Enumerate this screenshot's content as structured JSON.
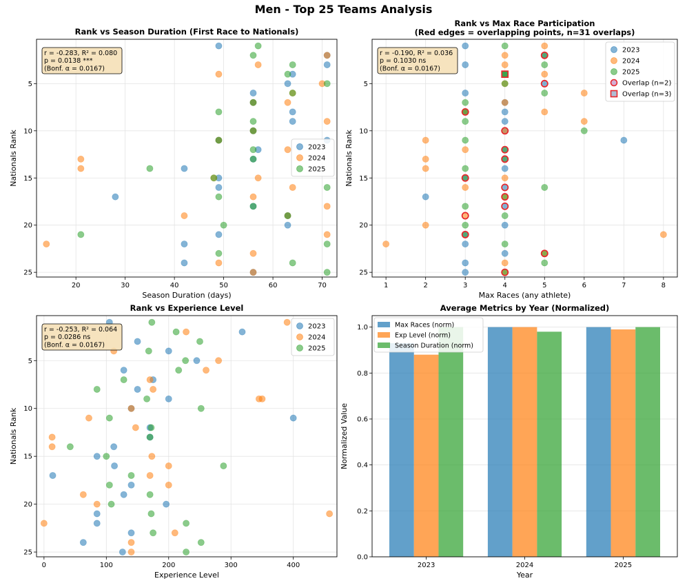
{
  "figure_title": "Men - Top 25 Teams Analysis",
  "colors": {
    "y2023": "#1f77b4",
    "y2024": "#ff7f0e",
    "y2025": "#2ca02c",
    "overlap_edge": "#e8262b"
  },
  "chart_data": [
    {
      "id": "duration",
      "type": "scatter",
      "title": "Rank vs Season Duration (First Race to Nationals)",
      "xlabel": "Season Duration (days)",
      "ylabel": "Nationals Rank",
      "xlim": [
        12,
        73
      ],
      "ylim": [
        25.5,
        0.3
      ],
      "xticks": [
        20,
        30,
        40,
        50,
        60,
        70
      ],
      "yticks": [
        5,
        10,
        15,
        20,
        25
      ],
      "grid": true,
      "stats": [
        "r = -0.283, R² = 0.080",
        "p = 0.0138 ***",
        "(Bonf. α = 0.0167)"
      ],
      "legend": {
        "position": "center-right",
        "entries": [
          "2023",
          "2024",
          "2025"
        ]
      },
      "series": [
        {
          "name": "2023",
          "points": [
            [
              49,
              1
            ],
            [
              71,
              3
            ],
            [
              64,
              4
            ],
            [
              63,
              5
            ],
            [
              56,
              6
            ],
            [
              64,
              8
            ],
            [
              64,
              9
            ],
            [
              71,
              11
            ],
            [
              57,
              12
            ],
            [
              56,
              13
            ],
            [
              42,
              14
            ],
            [
              49,
              15
            ],
            [
              49,
              16
            ],
            [
              28,
              17
            ],
            [
              56,
              18
            ],
            [
              63,
              19
            ],
            [
              63,
              20
            ],
            [
              49,
              21
            ],
            [
              42,
              22
            ],
            [
              42,
              24
            ],
            [
              56,
              25
            ],
            [
              56,
              7
            ],
            [
              56,
              10
            ],
            [
              49,
              11
            ],
            [
              71,
              2
            ]
          ]
        },
        {
          "name": "2024",
          "points": [
            [
              71,
              2
            ],
            [
              57,
              3
            ],
            [
              49,
              4
            ],
            [
              70,
              5
            ],
            [
              63,
              7
            ],
            [
              56,
              7
            ],
            [
              56,
              10
            ],
            [
              71,
              9
            ],
            [
              49,
              11
            ],
            [
              63,
              12
            ],
            [
              21,
              13
            ],
            [
              21,
              14
            ],
            [
              57,
              15
            ],
            [
              64,
              16
            ],
            [
              56,
              17
            ],
            [
              71,
              18
            ],
            [
              42,
              19
            ],
            [
              71,
              21
            ],
            [
              14,
              22
            ],
            [
              56,
              23
            ],
            [
              49,
              24
            ],
            [
              56,
              25
            ],
            [
              64,
              6
            ],
            [
              48,
              15
            ],
            [
              63,
              19
            ]
          ]
        },
        {
          "name": "2025",
          "points": [
            [
              57,
              1
            ],
            [
              56,
              2
            ],
            [
              64,
              3
            ],
            [
              63,
              4
            ],
            [
              71,
              5
            ],
            [
              64,
              6
            ],
            [
              56,
              7
            ],
            [
              49,
              8
            ],
            [
              56,
              10
            ],
            [
              49,
              11
            ],
            [
              56,
              12
            ],
            [
              56,
              13
            ],
            [
              35,
              14
            ],
            [
              48,
              15
            ],
            [
              71,
              16
            ],
            [
              49,
              17
            ],
            [
              56,
              18
            ],
            [
              63,
              19
            ],
            [
              50,
              20
            ],
            [
              21,
              21
            ],
            [
              71,
              22
            ],
            [
              49,
              23
            ],
            [
              64,
              24
            ],
            [
              71,
              25
            ],
            [
              56,
              9
            ]
          ]
        }
      ]
    },
    {
      "id": "maxraces",
      "type": "scatter",
      "title": "Rank vs Max Race Participation",
      "subtitle": "(Red edges = overlapping points, n=31 overlaps)",
      "xlabel": "Max Races (any athlete)",
      "ylabel": "Nationals Rank",
      "xlim": [
        0.65,
        8.35
      ],
      "ylim": [
        25.5,
        0.3
      ],
      "xticks": [
        1,
        2,
        3,
        4,
        5,
        6,
        7,
        8
      ],
      "yticks": [
        5,
        10,
        15,
        20,
        25
      ],
      "grid": true,
      "stats": [
        "r = -0.190, R² = 0.036",
        "p = 0.1030 ns",
        "(Bonf. α = 0.0167)"
      ],
      "legend": {
        "position": "top-right",
        "entries": [
          "2023",
          "2024",
          "2025",
          "Overlap (n=2)",
          "Overlap (n=3)"
        ]
      },
      "series": [
        {
          "name": "2023",
          "points": [
            [
              3,
              1
            ],
            [
              3,
              3
            ],
            [
              4,
              4
            ],
            [
              5,
              5
            ],
            [
              3,
              6
            ],
            [
              4,
              7
            ],
            [
              4,
              8
            ],
            [
              4,
              9
            ],
            [
              7,
              11
            ],
            [
              4,
              13
            ],
            [
              4,
              14
            ],
            [
              3,
              15
            ],
            [
              4,
              16
            ],
            [
              2,
              17
            ],
            [
              4,
              18
            ],
            [
              4,
              20
            ],
            [
              3,
              21
            ],
            [
              3,
              22
            ],
            [
              4,
              23
            ],
            [
              3,
              24
            ],
            [
              3,
              25
            ],
            [
              3,
              8
            ],
            [
              4,
              10
            ],
            [
              4,
              12
            ],
            [
              5,
              2
            ]
          ]
        },
        {
          "name": "2024",
          "points": [
            [
              5,
              1
            ],
            [
              4,
              2
            ],
            [
              4,
              3
            ],
            [
              5,
              4
            ],
            [
              4,
              5
            ],
            [
              6,
              6
            ],
            [
              4,
              7
            ],
            [
              5,
              8
            ],
            [
              6,
              9
            ],
            [
              2,
              11
            ],
            [
              3,
              12
            ],
            [
              2,
              13
            ],
            [
              2,
              14
            ],
            [
              4,
              15
            ],
            [
              3,
              16
            ],
            [
              4,
              17
            ],
            [
              3,
              19
            ],
            [
              2,
              20
            ],
            [
              8,
              21
            ],
            [
              1,
              22
            ],
            [
              5,
              23
            ],
            [
              4,
              24
            ],
            [
              4,
              25
            ],
            [
              4,
              10
            ],
            [
              3,
              8
            ]
          ]
        },
        {
          "name": "2025",
          "points": [
            [
              4,
              1
            ],
            [
              5,
              2
            ],
            [
              5,
              3
            ],
            [
              4,
              4
            ],
            [
              4,
              5
            ],
            [
              5,
              6
            ],
            [
              3,
              7
            ],
            [
              3,
              8
            ],
            [
              3,
              9
            ],
            [
              6,
              10
            ],
            [
              3,
              11
            ],
            [
              4,
              12
            ],
            [
              4,
              13
            ],
            [
              3,
              14
            ],
            [
              3,
              15
            ],
            [
              5,
              16
            ],
            [
              4,
              17
            ],
            [
              3,
              18
            ],
            [
              4,
              19
            ],
            [
              3,
              20
            ],
            [
              3,
              21
            ],
            [
              4,
              22
            ],
            [
              5,
              23
            ],
            [
              5,
              24
            ],
            [
              4,
              25
            ]
          ]
        }
      ],
      "overlaps_n2": [
        [
          5,
          2
        ],
        [
          3,
          8
        ],
        [
          4,
          10
        ],
        [
          4,
          12
        ],
        [
          4,
          13
        ],
        [
          3,
          15
        ],
        [
          4,
          16
        ],
        [
          4,
          17
        ],
        [
          4,
          18
        ],
        [
          3,
          19
        ],
        [
          3,
          21
        ],
        [
          5,
          23
        ],
        [
          4,
          25
        ],
        [
          5,
          5
        ]
      ],
      "overlaps_n3": [
        [
          4,
          4
        ]
      ]
    },
    {
      "id": "experience",
      "type": "scatter",
      "title": "Rank vs Experience Level",
      "xlabel": "Experience Level",
      "ylabel": "Nationals Rank",
      "xlim": [
        -12,
        470
      ],
      "ylim": [
        25.5,
        0.3
      ],
      "xticks": [
        0,
        100,
        200,
        300,
        400
      ],
      "yticks": [
        5,
        10,
        15,
        20,
        25
      ],
      "grid": true,
      "stats": [
        "r = -0.253, R² = 0.064",
        "p = 0.0286 ns",
        "(Bonf. α = 0.0167)"
      ],
      "legend": {
        "position": "top-right",
        "entries": [
          "2023",
          "2024",
          "2025"
        ]
      },
      "series": [
        {
          "name": "2023",
          "points": [
            [
              105,
              1
            ],
            [
              318,
              2
            ],
            [
              150,
              3
            ],
            [
              200,
              4
            ],
            [
              245,
              5
            ],
            [
              128,
              6
            ],
            [
              175,
              7
            ],
            [
              150,
              8
            ],
            [
              200,
              9
            ],
            [
              400,
              11
            ],
            [
              170,
              12
            ],
            [
              170,
              13
            ],
            [
              112,
              14
            ],
            [
              85,
              15
            ],
            [
              113,
              16
            ],
            [
              14,
              17
            ],
            [
              140,
              18
            ],
            [
              128,
              19
            ],
            [
              196,
              20
            ],
            [
              85,
              21
            ],
            [
              85,
              22
            ],
            [
              140,
              23
            ],
            [
              63,
              24
            ],
            [
              126,
              25
            ],
            [
              140,
              10
            ]
          ]
        },
        {
          "name": "2024",
          "points": [
            [
              390,
              1
            ],
            [
              228,
              2
            ],
            [
              112,
              4
            ],
            [
              280,
              5
            ],
            [
              260,
              6
            ],
            [
              170,
              7
            ],
            [
              175,
              8
            ],
            [
              345,
              9
            ],
            [
              72,
              11
            ],
            [
              147,
              12
            ],
            [
              13,
              13
            ],
            [
              13,
              14
            ],
            [
              173,
              15
            ],
            [
              200,
              16
            ],
            [
              170,
              17
            ],
            [
              200,
              18
            ],
            [
              63,
              19
            ],
            [
              85,
              20
            ],
            [
              458,
              21
            ],
            [
              0,
              22
            ],
            [
              210,
              23
            ],
            [
              140,
              24
            ],
            [
              140,
              25
            ],
            [
              140,
              10
            ],
            [
              350,
              9
            ]
          ]
        },
        {
          "name": "2025",
          "points": [
            [
              173,
              1
            ],
            [
              212,
              2
            ],
            [
              250,
              3
            ],
            [
              168,
              4
            ],
            [
              227,
              5
            ],
            [
              216,
              6
            ],
            [
              128,
              7
            ],
            [
              85,
              8
            ],
            [
              165,
              9
            ],
            [
              252,
              10
            ],
            [
              105,
              11
            ],
            [
              172,
              12
            ],
            [
              170,
              13
            ],
            [
              42,
              14
            ],
            [
              100,
              15
            ],
            [
              288,
              16
            ],
            [
              140,
              17
            ],
            [
              105,
              18
            ],
            [
              170,
              19
            ],
            [
              108,
              20
            ],
            [
              172,
              21
            ],
            [
              228,
              22
            ],
            [
              175,
              23
            ],
            [
              252,
              24
            ],
            [
              228,
              25
            ]
          ]
        }
      ]
    },
    {
      "id": "averages",
      "type": "bar",
      "title": "Average Metrics by Year (Normalized)",
      "xlabel": "Year",
      "ylabel": "Normalized Value",
      "categories": [
        "2023",
        "2024",
        "2025"
      ],
      "ylim": [
        0,
        1.05
      ],
      "yticks": [
        "0.0",
        "0.2",
        "0.4",
        "0.6",
        "0.8",
        "1.0"
      ],
      "grid": true,
      "legend": {
        "position": "top-left",
        "entries": [
          "Max Races (norm)",
          "Exp Level (norm)",
          "Season Duration (norm)"
        ]
      },
      "series": [
        {
          "name": "Max Races (norm)",
          "values": [
            0.93,
            1.0,
            1.0
          ]
        },
        {
          "name": "Exp Level (norm)",
          "values": [
            0.88,
            1.0,
            0.99
          ]
        },
        {
          "name": "Season Duration (norm)",
          "values": [
            1.0,
            0.98,
            1.0
          ]
        }
      ]
    }
  ]
}
